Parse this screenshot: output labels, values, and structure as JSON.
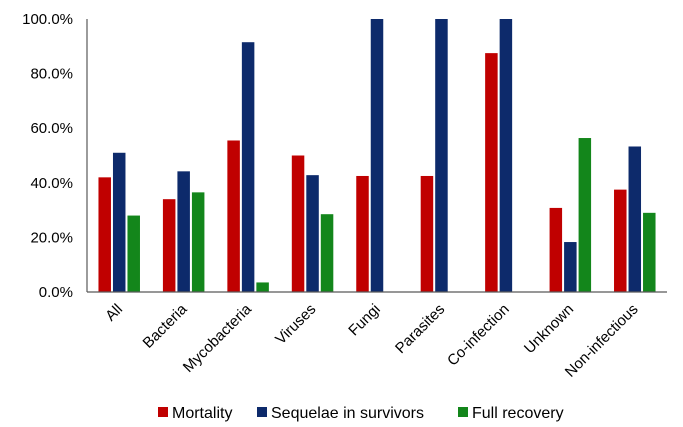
{
  "chart_data": {
    "type": "bar",
    "title": "",
    "xlabel": "",
    "ylabel": "",
    "ylim": [
      0,
      100
    ],
    "y_tick_values": [
      0,
      20,
      40,
      60,
      80,
      100
    ],
    "y_tick_labels": [
      "0.0%",
      "20.0%",
      "40.0%",
      "60.0%",
      "80.0%",
      "100.0%"
    ],
    "grid": false,
    "legend_position": "bottom",
    "categories": [
      "All",
      "Bacteria",
      "Mycobacteria",
      "Viruses",
      "Fungi",
      "Parasites",
      "Co-infection",
      "Unknown",
      "Non-infectious"
    ],
    "series": [
      {
        "name": "Mortality",
        "color": "#c00000",
        "values": [
          42.0,
          34.0,
          55.5,
          50.0,
          42.5,
          42.5,
          87.5,
          30.8,
          37.5
        ]
      },
      {
        "name": "Sequelae in survivors",
        "color": "#0d2a6b",
        "values": [
          51.0,
          44.2,
          91.5,
          42.8,
          100.0,
          100.0,
          100.0,
          18.3,
          53.3
        ]
      },
      {
        "name": "Full recovery",
        "color": "#13861b",
        "values": [
          28.0,
          36.5,
          3.5,
          28.5,
          null,
          null,
          null,
          56.4,
          29.0
        ]
      }
    ]
  }
}
